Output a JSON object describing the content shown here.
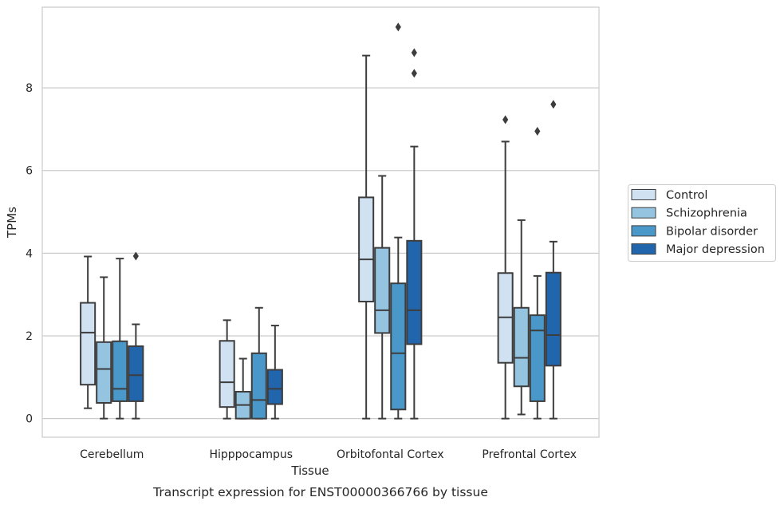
{
  "chart_data": {
    "type": "box",
    "title": "",
    "caption": "Transcript expression for ENST00000366766 by tissue",
    "xlabel": "Tissue",
    "ylabel": "TPMs",
    "ylim": [
      -0.45,
      9.95
    ],
    "yticks": [
      0,
      2,
      4,
      6,
      8
    ],
    "grid": "horizontal",
    "legend_position": "right",
    "categories": [
      "Cerebellum",
      "Hipppocampus",
      "Orbitofontal Cortex",
      "Prefrontal Cortex"
    ],
    "series": [
      {
        "name": "Control",
        "color": "#d0e1f2",
        "boxes": [
          {
            "min": 0.25,
            "q1": 0.82,
            "median": 2.08,
            "q3": 2.8,
            "max": 3.92,
            "outliers": []
          },
          {
            "min": 0.0,
            "q1": 0.28,
            "median": 0.88,
            "q3": 1.88,
            "max": 2.38,
            "outliers": []
          },
          {
            "min": 0.0,
            "q1": 2.83,
            "median": 3.85,
            "q3": 5.35,
            "max": 8.78,
            "outliers": []
          },
          {
            "min": 0.0,
            "q1": 1.35,
            "median": 2.45,
            "q3": 3.52,
            "max": 6.7,
            "outliers": [
              7.23
            ]
          }
        ]
      },
      {
        "name": "Schizophrenia",
        "color": "#94c4df",
        "boxes": [
          {
            "min": 0.0,
            "q1": 0.38,
            "median": 1.2,
            "q3": 1.85,
            "max": 3.42,
            "outliers": []
          },
          {
            "min": 0.0,
            "q1": 0.0,
            "median": 0.33,
            "q3": 0.65,
            "max": 1.45,
            "outliers": []
          },
          {
            "min": 0.0,
            "q1": 2.07,
            "median": 2.62,
            "q3": 4.13,
            "max": 5.87,
            "outliers": []
          },
          {
            "min": 0.1,
            "q1": 0.78,
            "median": 1.47,
            "q3": 2.68,
            "max": 4.8,
            "outliers": []
          }
        ]
      },
      {
        "name": "Bipolar disorder",
        "color": "#4a98c9",
        "boxes": [
          {
            "min": 0.0,
            "q1": 0.42,
            "median": 0.72,
            "q3": 1.87,
            "max": 3.87,
            "outliers": []
          },
          {
            "min": 0.0,
            "q1": 0.0,
            "median": 0.45,
            "q3": 1.58,
            "max": 2.68,
            "outliers": []
          },
          {
            "min": 0.0,
            "q1": 0.22,
            "median": 1.58,
            "q3": 3.27,
            "max": 4.38,
            "outliers": [
              9.47
            ]
          },
          {
            "min": 0.0,
            "q1": 0.42,
            "median": 2.13,
            "q3": 2.5,
            "max": 3.45,
            "outliers": [
              6.95
            ]
          }
        ]
      },
      {
        "name": "Major depression",
        "color": "#2166ac",
        "boxes": [
          {
            "min": 0.0,
            "q1": 0.42,
            "median": 1.05,
            "q3": 1.75,
            "max": 2.28,
            "outliers": [
              3.93
            ]
          },
          {
            "min": 0.0,
            "q1": 0.35,
            "median": 0.72,
            "q3": 1.18,
            "max": 2.25,
            "outliers": []
          },
          {
            "min": 0.0,
            "q1": 1.8,
            "median": 2.62,
            "q3": 4.3,
            "max": 6.58,
            "outliers": [
              8.85,
              8.35
            ]
          },
          {
            "min": 0.0,
            "q1": 1.28,
            "median": 2.02,
            "q3": 3.53,
            "max": 4.28,
            "outliers": [
              7.6
            ]
          }
        ]
      }
    ]
  }
}
